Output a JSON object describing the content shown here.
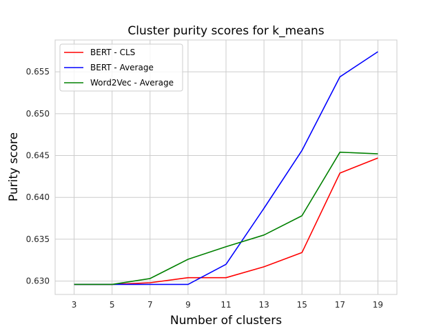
{
  "chart_data": {
    "type": "line",
    "title": "Cluster purity scores for k_means",
    "xlabel": "Number of clusters",
    "ylabel": "Purity score",
    "x": [
      3,
      5,
      7,
      9,
      11,
      13,
      15,
      17,
      19
    ],
    "x_ticks": [
      "3",
      "5",
      "7",
      "9",
      "11",
      "13",
      "15",
      "17",
      "19"
    ],
    "y_ticks": [
      "0.630",
      "0.635",
      "0.640",
      "0.645",
      "0.650",
      "0.655"
    ],
    "y_tick_values": [
      0.63,
      0.635,
      0.64,
      0.645,
      0.65,
      0.655
    ],
    "xlim": [
      2,
      20
    ],
    "ylim": [
      0.6284,
      0.6588
    ],
    "grid": true,
    "legend_position": "top-left",
    "series": [
      {
        "name": "BERT - CLS",
        "color": "#ff0000",
        "values": [
          0.6296,
          0.6296,
          0.6298,
          0.6304,
          0.6304,
          0.6317,
          0.6334,
          0.6429,
          0.6447
        ]
      },
      {
        "name": "BERT - Average",
        "color": "#0000ff",
        "values": [
          0.6296,
          0.6296,
          0.6296,
          0.6296,
          0.632,
          0.6387,
          0.6456,
          0.6544,
          0.6574
        ]
      },
      {
        "name": "Word2Vec - Average",
        "color": "#008000",
        "values": [
          0.6296,
          0.6296,
          0.6303,
          0.6326,
          0.6341,
          0.6355,
          0.6378,
          0.6454,
          0.6452
        ]
      }
    ]
  }
}
